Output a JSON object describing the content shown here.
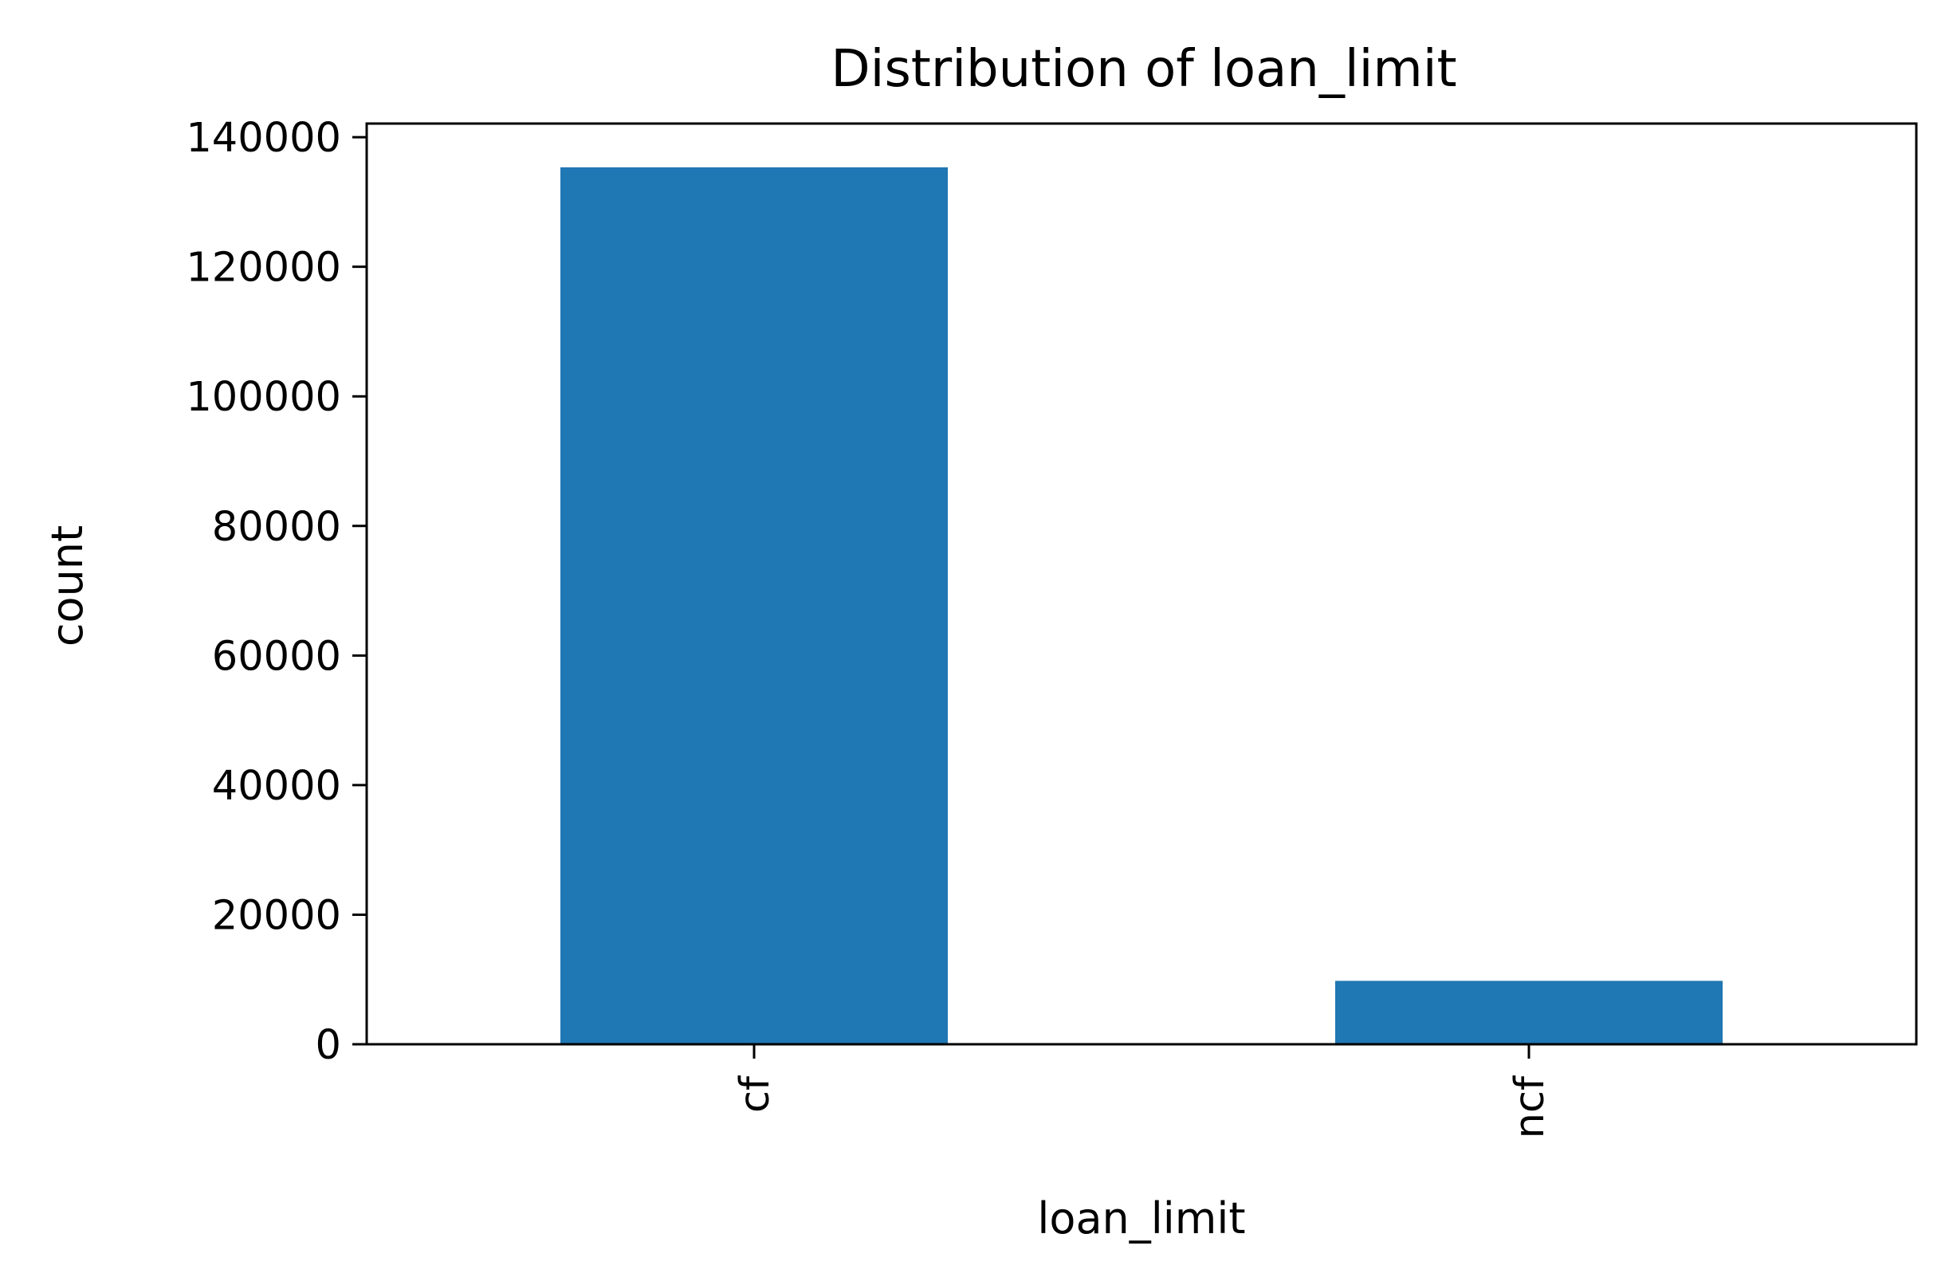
{
  "chart_data": {
    "type": "bar",
    "title": "Distribution of loan_limit",
    "xlabel": "loan_limit",
    "ylabel": "count",
    "categories": [
      "cf",
      "ncf"
    ],
    "values": [
      135348,
      9786
    ],
    "ylim": [
      0,
      142100
    ],
    "yticks": [
      0,
      20000,
      40000,
      60000,
      80000,
      100000,
      120000,
      140000
    ],
    "ytick_labels": [
      "0",
      "20000",
      "40000",
      "60000",
      "80000",
      "100000",
      "120000",
      "140000"
    ],
    "grid": false,
    "legend": "none",
    "bar_color": "#1f77b4"
  }
}
